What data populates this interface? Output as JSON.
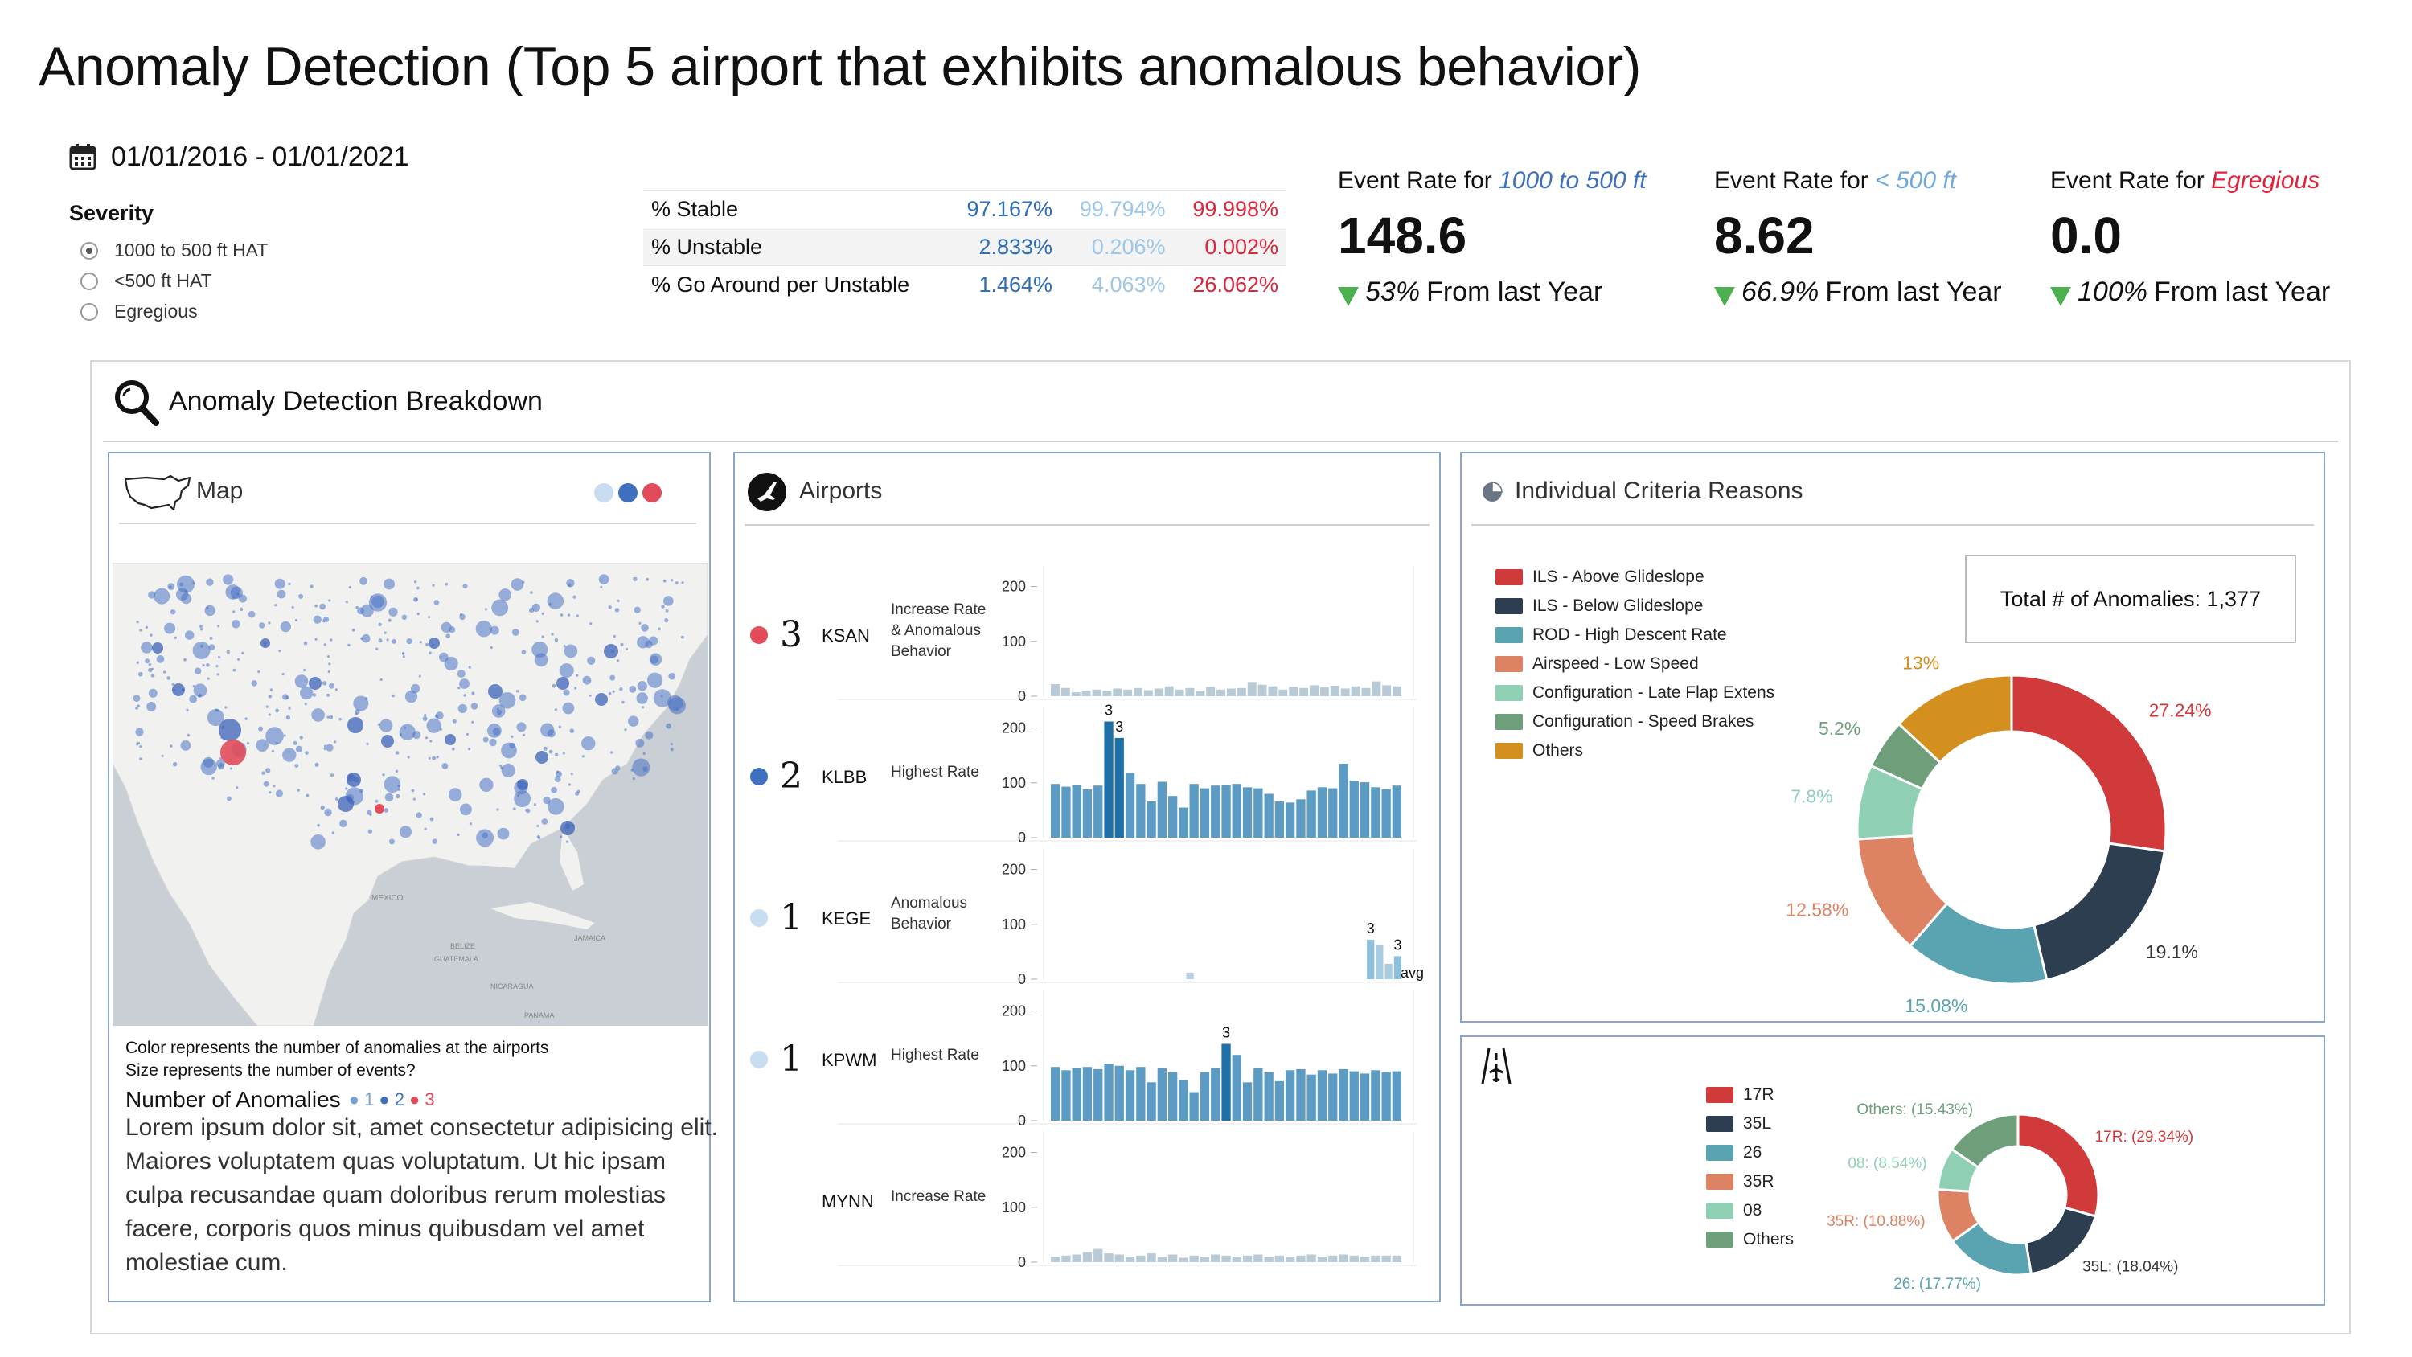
{
  "header": {
    "title": "Anomaly Detection (Top 5 airport that exhibits anomalous behavior)",
    "date_range": "01/01/2016 - 01/01/2021"
  },
  "severity": {
    "label": "Severity",
    "options": [
      {
        "label": "1000 to 500 ft HAT",
        "selected": true
      },
      {
        "label": "<500 ft HAT",
        "selected": false
      },
      {
        "label": "Egregious",
        "selected": false
      }
    ]
  },
  "stats": {
    "rows": [
      {
        "label": "% Stable",
        "v1": "97.167%",
        "v2": "99.794%",
        "v3": "99.998%"
      },
      {
        "label": "% Unstable",
        "v1": "2.833%",
        "v2": "0.206%",
        "v3": "0.002%"
      },
      {
        "label": "% Go Around per Unstable",
        "v1": "1.464%",
        "v2": "4.063%",
        "v3": "26.062%"
      }
    ]
  },
  "kpis": [
    {
      "prefix": "Event Rate for ",
      "highlight": "1000 to 500 ft",
      "color": "#3d6fbf",
      "value": "148.6",
      "pct": "53%",
      "change": "From last Year"
    },
    {
      "prefix": "Event Rate for ",
      "highlight": "< 500 ft",
      "color": "#6fa8dc",
      "value": "8.62",
      "pct": "66.9%",
      "change": "From last Year"
    },
    {
      "prefix": "Event Rate for ",
      "highlight": "Egregious",
      "color": "#e0233a",
      "value": "0.0",
      "pct": "100%",
      "change": "From last Year"
    }
  ],
  "breakdown": {
    "title": "Anomaly Detection Breakdown"
  },
  "map_panel": {
    "title": "Map",
    "map_labels": {
      "mexico": "MEXICO",
      "belize": "BELIZE",
      "guatemala": "GUATEMALA",
      "jamaica": "JAMAICA",
      "nicaragua": "NICARAGUA",
      "panama": "PANAMA"
    },
    "caption1": "Color represents the number of anomalies at the airports",
    "caption2": "Size represents the number of events?",
    "legend_title": "Number of Anomalies",
    "legend_items": [
      "1",
      "2",
      "3"
    ],
    "legend_colors": [
      "#7aa0d4",
      "#3f6fbf",
      "#e14b5a"
    ],
    "lorem": "Lorem ipsum dolor sit, amet consectetur adipisicing elit. Maiores voluptatem quas voluptatum. Ut hic ipsam culpa recusandae quam doloribus rerum molestias facere, corporis quos minus quibusdam vel amet molestiae cum."
  },
  "airports_panel": {
    "title": "Airports",
    "rows": [
      {
        "code": "KSAN",
        "rank": "3",
        "dot": "#e14b5a",
        "reason": [
          "Increase Rate",
          "& Anomalous",
          "Behavior"
        ],
        "ticks": [
          "200",
          "100",
          "0"
        ],
        "bars": [
          22,
          15,
          7,
          10,
          12,
          10,
          14,
          12,
          15,
          11,
          14,
          18,
          12,
          15,
          10,
          17,
          12,
          14,
          15,
          26,
          21,
          18,
          12,
          17,
          15,
          20,
          16,
          19,
          14,
          18,
          15,
          27,
          20,
          18
        ],
        "mark": []
      },
      {
        "code": "KLBB",
        "rank": "2",
        "dot": "#3f6fbf",
        "reason": [
          "Highest Rate"
        ],
        "ticks": [
          "200",
          "100",
          "0"
        ],
        "bars": [
          98,
          93,
          96,
          88,
          95,
          212,
          182,
          118,
          98,
          66,
          102,
          76,
          55,
          98,
          90,
          95,
          96,
          98,
          92,
          90,
          80,
          66,
          64,
          70,
          86,
          92,
          90,
          135,
          104,
          101,
          92,
          88,
          95
        ],
        "mark": [
          5,
          6
        ],
        "labels": {
          "5": "3",
          "6": "3"
        }
      },
      {
        "code": "KEGE",
        "rank": "1",
        "dot": "#c8dcf2",
        "reason": [
          "Anomalous",
          "Behavior"
        ],
        "ticks": [
          "200",
          "100",
          "0"
        ],
        "bars": [
          0,
          0,
          0,
          0,
          0,
          0,
          0,
          0,
          0,
          0,
          0,
          0,
          0,
          0,
          0,
          12,
          0,
          0,
          0,
          0,
          0,
          0,
          0,
          0,
          0,
          0,
          0,
          0,
          0,
          0,
          0,
          0,
          0,
          0,
          0,
          72,
          62,
          28,
          42
        ],
        "mark": [
          35,
          38
        ],
        "labels": {
          "35": "3",
          "38": "3"
        }
      },
      {
        "code": "KPWM",
        "rank": "1",
        "dot": "#c8dcf2",
        "reason": [
          "Highest Rate"
        ],
        "ticks": [
          "200",
          "100",
          "0"
        ],
        "bars": [
          98,
          92,
          96,
          98,
          94,
          104,
          100,
          92,
          98,
          70,
          96,
          88,
          74,
          52,
          88,
          96,
          140,
          120,
          70,
          96,
          88,
          72,
          92,
          94,
          84,
          92,
          86,
          94,
          90,
          86,
          92,
          88,
          90
        ],
        "mark": [
          16
        ],
        "labels": {
          "16": "3"
        }
      },
      {
        "code": "MYNN",
        "rank": "",
        "dot": "",
        "reason": [
          "Increase Rate"
        ],
        "ticks": [
          "200",
          "100",
          "0"
        ],
        "bars": [
          10,
          12,
          14,
          18,
          24,
          16,
          14,
          10,
          12,
          16,
          10,
          14,
          8,
          12,
          10,
          14,
          12,
          10,
          12,
          14,
          10,
          12,
          10,
          12,
          14,
          10,
          12,
          14,
          12,
          10,
          12,
          12,
          12
        ],
        "mark": []
      }
    ],
    "avg_label": "avg"
  },
  "criteria_panel": {
    "title": "Individual Criteria Reasons",
    "total_label": "Total # of Anomalies: 1,377",
    "chart_data": {
      "type": "pie",
      "categories": [
        "ILS - Above Glideslope",
        "ILS - Below Glideslope",
        "ROD - High Descent Rate",
        "Airspeed - Low Speed",
        "Configuration - Late Flap Extens",
        "Configuration - Speed Brakes",
        "Others"
      ],
      "values": [
        27.24,
        19.1,
        15.08,
        12.58,
        7.8,
        5.2,
        13.0
      ],
      "value_labels": [
        "27.24%",
        "19.1%",
        "15.08%",
        "12.58%",
        "7.8%",
        "5.2%",
        "13%"
      ],
      "colors": [
        "#d03a3a",
        "#2c3e50",
        "#5aa3b0",
        "#de8264",
        "#8fd0b4",
        "#6e9e7a",
        "#d4901f"
      ]
    }
  },
  "runway_panel": {
    "chart_data": {
      "type": "pie",
      "categories": [
        "17R",
        "35L",
        "26",
        "35R",
        "08",
        "Others"
      ],
      "values": [
        29.34,
        18.04,
        17.77,
        10.88,
        8.54,
        15.43
      ],
      "value_labels": [
        "17R: (29.34%)",
        "35L: (18.04%)",
        "26: (17.77%)",
        "35R: (10.88%)",
        "08: (8.54%)",
        "Others: (15.43%)"
      ],
      "colors": [
        "#d03a3a",
        "#2c3e50",
        "#5aa3b0",
        "#de8264",
        "#8fd0b4",
        "#6e9e7a"
      ]
    }
  }
}
